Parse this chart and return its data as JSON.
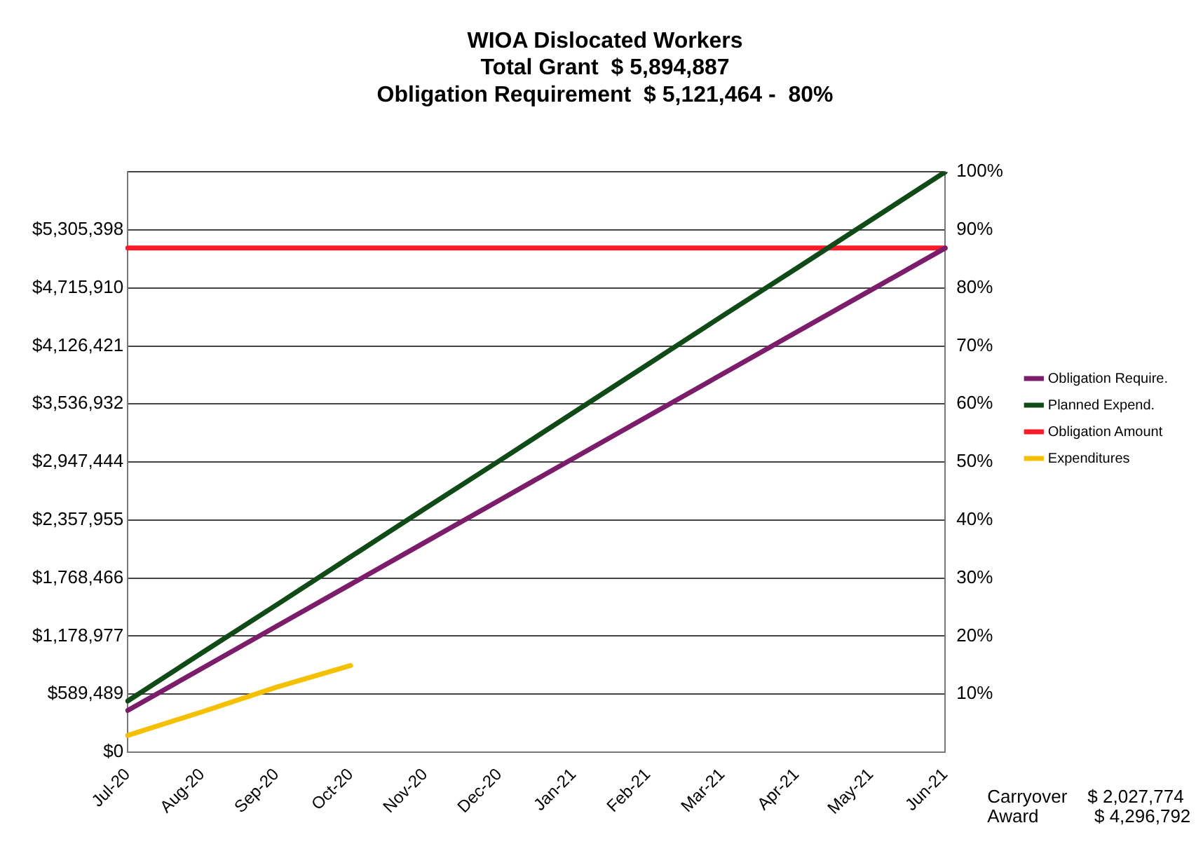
{
  "chart_data": {
    "type": "line",
    "title": "WIOA Dislocated Workers",
    "subtitle": "Total Grant  $ 5,894,887\nObligation Requirement  $ 5,121,464 -  80%",
    "categories": [
      "Jul-20",
      "Aug-20",
      "Sep-20",
      "Oct-20",
      "Nov-20",
      "Dec-20",
      "Jan-21",
      "Feb-21",
      "Mar-21",
      "Apr-21",
      "May-21",
      "Jun-21"
    ],
    "series": [
      {
        "name": "Obligation Require.",
        "color": "#7b1d6a",
        "values": [
          424000,
          851000,
          1278000,
          1705000,
          2132000,
          2559000,
          2986000,
          3413000,
          3840000,
          4267000,
          4694000,
          5121000
        ]
      },
      {
        "name": "Planned Expend.",
        "color": "#0f4a17",
        "values": [
          520000,
          1010000,
          1495000,
          1985000,
          2475000,
          2960000,
          3450000,
          3940000,
          4430000,
          4915000,
          5405000,
          5894887
        ]
      },
      {
        "name": "Obligation Amount",
        "color": "#ff1a2a",
        "values": [
          5121464,
          5121464,
          5121464,
          5121464,
          5121464,
          5121464,
          5121464,
          5121464,
          5121464,
          5121464,
          5121464,
          5121464
        ]
      },
      {
        "name": "Expenditures",
        "color": "#f5c000",
        "values": [
          170000,
          410000,
          660000,
          880000,
          null,
          null,
          null,
          null,
          null,
          null,
          null,
          null
        ]
      }
    ],
    "ylim": [
      0,
      5894887
    ],
    "yticks": [
      {
        "value": 0,
        "label": "$0"
      },
      {
        "value": 589489,
        "label": "$589,489"
      },
      {
        "value": 1178977,
        "label": "$1,178,977"
      },
      {
        "value": 1768466,
        "label": "$1,768,466"
      },
      {
        "value": 2357955,
        "label": "$2,357,955"
      },
      {
        "value": 2947444,
        "label": "$2,947,444"
      },
      {
        "value": 3536932,
        "label": "$3,536,932"
      },
      {
        "value": 4126421,
        "label": "$4,126,421"
      },
      {
        "value": 4715910,
        "label": "$4,715,910"
      },
      {
        "value": 5305398,
        "label": "$5,305,398"
      },
      {
        "value": 5894887,
        "label": null
      }
    ],
    "y2lim": [
      0,
      100
    ],
    "y2ticks": [
      {
        "value": 10,
        "label": "10%"
      },
      {
        "value": 20,
        "label": "20%"
      },
      {
        "value": 30,
        "label": "30%"
      },
      {
        "value": 40,
        "label": "40%"
      },
      {
        "value": 50,
        "label": "50%"
      },
      {
        "value": 60,
        "label": "60%"
      },
      {
        "value": 70,
        "label": "70%"
      },
      {
        "value": 80,
        "label": "80%"
      },
      {
        "value": 90,
        "label": "90%"
      },
      {
        "value": 100,
        "label": "100%"
      }
    ],
    "grid": "y",
    "legend": "right",
    "marker": "none",
    "line_style": "solid",
    "annotations": [
      "Carryover    $ 2,027,774",
      "Award           $ 4,296,792"
    ]
  }
}
